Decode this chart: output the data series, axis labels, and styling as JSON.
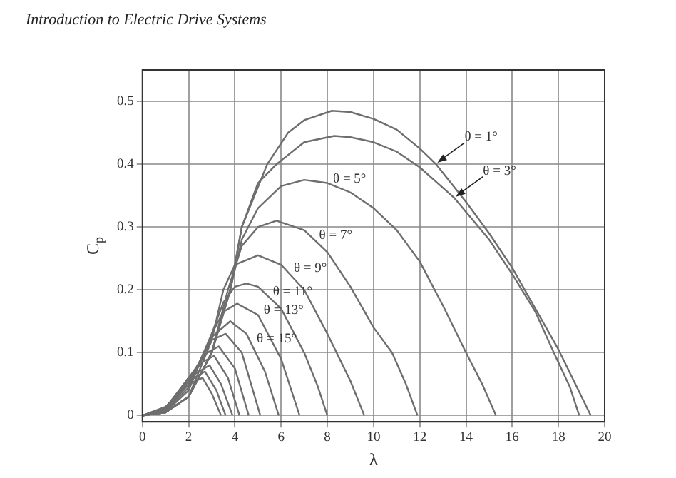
{
  "chart_data": {
    "type": "line",
    "xlabel": "λ",
    "ylabel": "C$_{p}$",
    "xlim": [
      0,
      20
    ],
    "xticks": [
      0,
      2,
      4,
      6,
      8,
      10,
      12,
      14,
      16,
      18,
      20
    ],
    "ylim": [
      -0.01,
      0.55
    ],
    "yticks": [
      0,
      0.1,
      0.2,
      0.3,
      0.4,
      0.5
    ],
    "grid": true,
    "legend": false,
    "marker": "none",
    "line_style": "solid",
    "series": [
      {
        "color": "#6e6e6e",
        "x": [
          0,
          1,
          2,
          3,
          3.8,
          4.3,
          5.4,
          6.3,
          7,
          8.2,
          9,
          10,
          11,
          12,
          12.7,
          14,
          15,
          16,
          17,
          18,
          19,
          19.4
        ],
        "values": [
          0,
          0.005,
          0.03,
          0.1,
          0.2,
          0.3,
          0.4,
          0.45,
          0.47,
          0.485,
          0.483,
          0.472,
          0.455,
          0.425,
          0.4,
          0.34,
          0.29,
          0.235,
          0.17,
          0.105,
          0.03,
          0
        ]
      },
      {
        "color": "#6e6e6e",
        "x": [
          0,
          1,
          2,
          3,
          3.8,
          4.3,
          5,
          5.8,
          7,
          8.3,
          9,
          10,
          11,
          12,
          13.5,
          15,
          16,
          17,
          17.8,
          18.5,
          18.9
        ],
        "values": [
          0,
          0.005,
          0.03,
          0.1,
          0.2,
          0.3,
          0.37,
          0.4,
          0.435,
          0.445,
          0.443,
          0.435,
          0.42,
          0.395,
          0.346,
          0.28,
          0.225,
          0.165,
          0.1,
          0.045,
          0
        ]
      },
      {
        "color": "#6e6e6e",
        "x": [
          0,
          1,
          2,
          3,
          3.8,
          4.3,
          5,
          6,
          7,
          8,
          9,
          10,
          11,
          12,
          13,
          14,
          14.7,
          15.3
        ],
        "values": [
          0,
          0.005,
          0.03,
          0.1,
          0.2,
          0.28,
          0.33,
          0.365,
          0.375,
          0.37,
          0.355,
          0.33,
          0.295,
          0.245,
          0.175,
          0.1,
          0.05,
          0
        ]
      },
      {
        "color": "#6e6e6e",
        "x": [
          0,
          1,
          2,
          3,
          3.7,
          4.3,
          5,
          5.8,
          7,
          8,
          9,
          10,
          10.8,
          11.4,
          11.9
        ],
        "values": [
          0,
          0.005,
          0.03,
          0.1,
          0.2,
          0.27,
          0.3,
          0.31,
          0.295,
          0.26,
          0.205,
          0.14,
          0.1,
          0.05,
          0
        ]
      },
      {
        "color": "#6e6e6e",
        "x": [
          0,
          1,
          2,
          3,
          3.5,
          4,
          5,
          6,
          7,
          8,
          9,
          9.6
        ],
        "values": [
          0,
          0.005,
          0.03,
          0.12,
          0.2,
          0.24,
          0.255,
          0.24,
          0.2,
          0.13,
          0.055,
          0
        ]
      },
      {
        "color": "#6e6e6e",
        "x": [
          0,
          1,
          2,
          3,
          3.5,
          4,
          4.5,
          5,
          6,
          7,
          7.6,
          8
        ],
        "values": [
          0,
          0.006,
          0.04,
          0.13,
          0.18,
          0.205,
          0.21,
          0.205,
          0.17,
          0.1,
          0.045,
          0
        ]
      },
      {
        "color": "#6e6e6e",
        "x": [
          0,
          1,
          2,
          3,
          3.5,
          4.1,
          5,
          6,
          6.8
        ],
        "values": [
          0,
          0.007,
          0.045,
          0.13,
          0.165,
          0.178,
          0.16,
          0.09,
          0
        ]
      },
      {
        "color": "#6e6e6e",
        "x": [
          0,
          1,
          2,
          3,
          3.8,
          4.5,
          5.3,
          5.9
        ],
        "values": [
          0,
          0.008,
          0.05,
          0.125,
          0.15,
          0.13,
          0.07,
          0
        ]
      },
      {
        "color": "#6e6e6e",
        "x": [
          0,
          1,
          2,
          3,
          3.6,
          4.3,
          5.1
        ],
        "values": [
          0,
          0.009,
          0.055,
          0.12,
          0.13,
          0.1,
          0
        ]
      },
      {
        "color": "#6e6e6e",
        "x": [
          0,
          1,
          2,
          2.8,
          3.3,
          4,
          4.6
        ],
        "values": [
          0,
          0.01,
          0.06,
          0.1,
          0.11,
          0.075,
          0
        ]
      },
      {
        "color": "#6e6e6e",
        "x": [
          0,
          1,
          2,
          2.6,
          3.1,
          3.7,
          4.2
        ],
        "values": [
          0,
          0.011,
          0.06,
          0.085,
          0.095,
          0.06,
          0
        ]
      },
      {
        "color": "#6e6e6e",
        "x": [
          0,
          1,
          2,
          2.9,
          3.4,
          3.9
        ],
        "values": [
          0,
          0.012,
          0.06,
          0.08,
          0.05,
          0
        ]
      },
      {
        "color": "#6e6e6e",
        "x": [
          0,
          1,
          2,
          2.7,
          3.2,
          3.6
        ],
        "values": [
          0,
          0.013,
          0.055,
          0.07,
          0.04,
          0
        ]
      },
      {
        "color": "#6e6e6e",
        "x": [
          0,
          1,
          2,
          2.6,
          3,
          3.4
        ],
        "values": [
          0,
          0.014,
          0.05,
          0.06,
          0.035,
          0
        ]
      }
    ],
    "annotations": [
      "Introduction to Electric Drive Systems",
      {
        "text": "θ = 1°",
        "x": 12.7,
        "y": 0.4
      },
      {
        "text": "θ = 3°",
        "x": 13.5,
        "y": 0.346
      },
      {
        "text": "θ = 5°",
        "x": 8,
        "y": 0.37
      },
      {
        "text": "θ = 7°",
        "x": 7.4,
        "y": 0.28
      },
      {
        "text": "θ = 9°",
        "x": 6.3,
        "y": 0.228
      },
      {
        "text": "θ = 11°",
        "x": 5.4,
        "y": 0.19
      },
      {
        "text": "θ = 13°",
        "x": 5,
        "y": 0.16
      },
      {
        "text": "θ = 15°",
        "x": 4.7,
        "y": 0.115
      }
    ]
  }
}
